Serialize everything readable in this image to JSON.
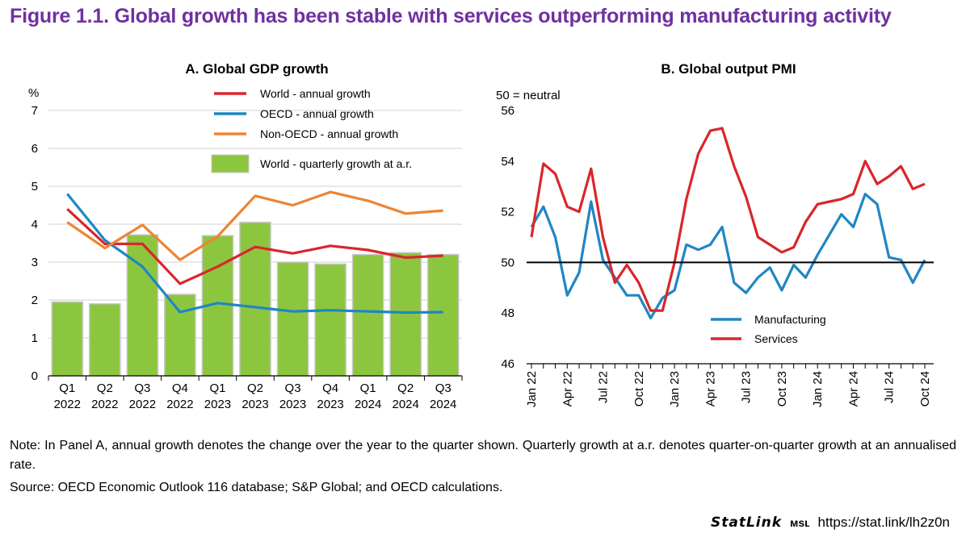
{
  "figure_title": "Figure 1.1. Global growth has been stable with services outperforming manufacturing activity",
  "note": "Note: In Panel A, annual growth denotes the change over the year to the quarter shown. Quarterly growth at a.r. denotes quarter-on-quarter growth at an annualised rate.",
  "source": "Source: OECD Economic Outlook 116 database; S&P Global; and OECD calculations.",
  "statlink": {
    "logo": "StatLink",
    "icon": "ᴍsʟ",
    "url": "https://stat.link/lh2z0n"
  },
  "colors": {
    "title": "#7030A0",
    "world": "#D9262B",
    "oecd": "#1F86C4",
    "non_oecd": "#EE8433",
    "bars": "#8CC63F",
    "bar_edge": "#C8C8C8",
    "grid": "#D0D0D0"
  },
  "chart_data": [
    {
      "type": "bar",
      "title": "A. Global GDP growth",
      "ylabel": "%",
      "ylim": [
        0,
        7
      ],
      "yticks": [
        0,
        1,
        2,
        3,
        4,
        5,
        6,
        7
      ],
      "grid": true,
      "legend_position": "top-right",
      "categories": [
        [
          "Q1",
          "2022"
        ],
        [
          "Q2",
          "2022"
        ],
        [
          "Q3",
          "2022"
        ],
        [
          "Q4",
          "2022"
        ],
        [
          "Q1",
          "2023"
        ],
        [
          "Q2",
          "2023"
        ],
        [
          "Q3",
          "2023"
        ],
        [
          "Q4",
          "2023"
        ],
        [
          "Q1",
          "2024"
        ],
        [
          "Q2",
          "2024"
        ],
        [
          "Q3",
          "2024"
        ]
      ],
      "bars": {
        "name": "World - quarterly growth at a.r.",
        "values": [
          1.95,
          1.9,
          3.72,
          2.15,
          3.7,
          4.05,
          3.0,
          2.95,
          3.2,
          3.25,
          3.2
        ]
      },
      "series": [
        {
          "name": "World - annual growth",
          "type": "line",
          "color": "#D9262B",
          "values": [
            4.4,
            3.48,
            3.48,
            2.43,
            2.88,
            3.4,
            3.23,
            3.43,
            3.32,
            3.12,
            3.17
          ]
        },
        {
          "name": "OECD - annual growth",
          "type": "line",
          "color": "#1F86C4",
          "values": [
            4.8,
            3.58,
            2.88,
            1.68,
            1.92,
            1.81,
            1.7,
            1.73,
            1.7,
            1.67,
            1.68
          ]
        },
        {
          "name": "Non-OECD - annual growth",
          "type": "line",
          "color": "#EE8433",
          "values": [
            4.05,
            3.37,
            3.98,
            3.06,
            3.68,
            4.75,
            4.5,
            4.85,
            4.62,
            4.28,
            4.36
          ]
        }
      ],
      "legend_order": [
        "World - annual growth",
        "OECD - annual growth",
        "Non-OECD - annual growth",
        "World - quarterly growth at a.r."
      ]
    },
    {
      "type": "line",
      "title": "B. Global output PMI",
      "ylabel": "50 = neutral",
      "ylim": [
        46,
        56
      ],
      "yticks": [
        46,
        48,
        50,
        52,
        54,
        56
      ],
      "reference_line": 50,
      "grid": false,
      "legend_position": "bottom-center",
      "x_start": "2022-01",
      "x_end": "2024-10",
      "xtick_labels": [
        "Jan 22",
        "Apr 22",
        "Jul 22",
        "Oct 22",
        "Jan 23",
        "Apr 23",
        "Jul 23",
        "Oct 23",
        "Jan 24",
        "Apr 24",
        "Jul 24",
        "Oct 24"
      ],
      "series": [
        {
          "name": "Manufacturing",
          "color": "#1F86C4",
          "values": [
            51.4,
            52.2,
            51.0,
            48.7,
            49.6,
            52.4,
            50.1,
            49.4,
            48.7,
            48.7,
            47.8,
            48.6,
            48.9,
            50.7,
            50.5,
            50.7,
            51.4,
            49.2,
            48.8,
            49.4,
            49.8,
            48.9,
            49.9,
            49.4,
            50.3,
            51.1,
            51.9,
            51.4,
            52.7,
            52.3,
            50.2,
            50.1,
            49.2,
            50.1
          ]
        },
        {
          "name": "Services",
          "color": "#D9262B",
          "values": [
            51.0,
            53.9,
            53.5,
            52.2,
            52.0,
            53.7,
            51.0,
            49.2,
            49.9,
            49.2,
            48.1,
            48.1,
            50.0,
            52.5,
            54.3,
            55.2,
            55.3,
            53.8,
            52.6,
            51.0,
            50.7,
            50.4,
            50.6,
            51.6,
            52.3,
            52.4,
            52.5,
            52.7,
            54.0,
            53.1,
            53.4,
            53.8,
            52.9,
            53.1
          ]
        }
      ]
    }
  ]
}
